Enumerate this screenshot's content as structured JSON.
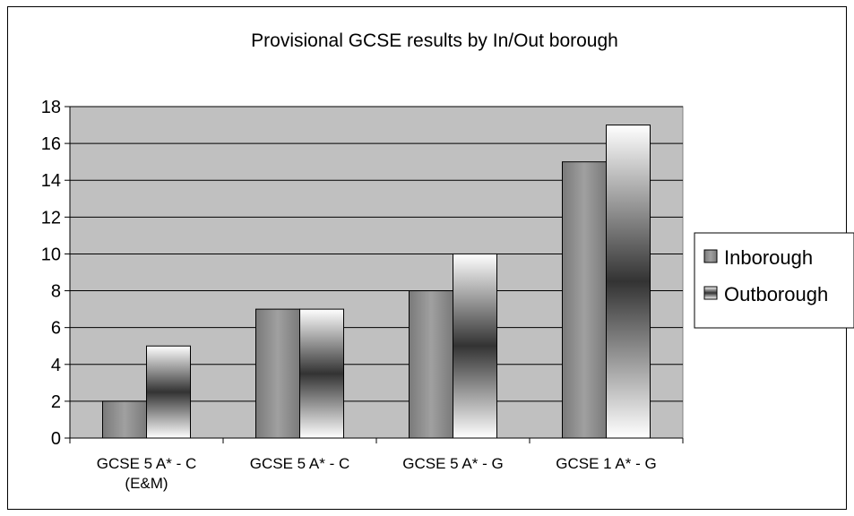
{
  "chart_data": {
    "type": "bar",
    "title": "Provisional GCSE results by In/Out borough",
    "xlabel": "",
    "ylabel": "",
    "categories": [
      [
        "GCSE 5 A* - C",
        "(E&M)"
      ],
      [
        "GCSE 5 A* - C"
      ],
      [
        "GCSE 5 A* - G"
      ],
      [
        "GCSE 1 A* - G"
      ]
    ],
    "series": [
      {
        "name": "Inborough",
        "values": [
          2,
          7,
          8,
          15
        ],
        "color": "#8c8c8c"
      },
      {
        "name": "Outborough",
        "values": [
          5,
          7,
          10,
          17
        ],
        "color": "#ffffff"
      }
    ],
    "ylim": [
      0,
      18
    ],
    "yticks": [
      0,
      2,
      4,
      6,
      8,
      10,
      12,
      14,
      16,
      18
    ],
    "grid": true,
    "plot_background": "#c0c0c0",
    "legend_position": "right"
  }
}
